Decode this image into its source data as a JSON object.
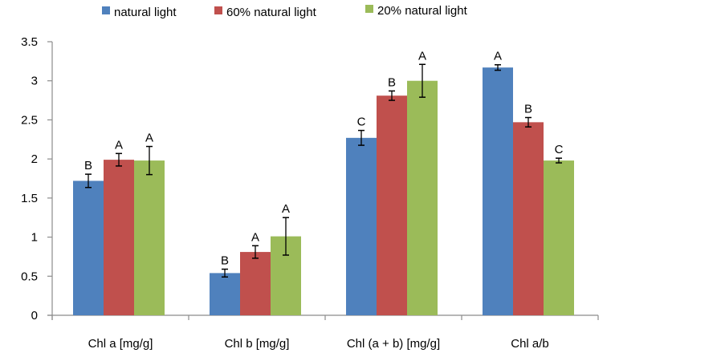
{
  "chart_data": {
    "type": "bar",
    "title": "",
    "xlabel": "",
    "ylabel": "",
    "ylim": [
      0,
      3.5
    ],
    "yticks": [
      "0",
      "0.5",
      "1",
      "1.5",
      "2",
      "2.5",
      "3",
      "3.5"
    ],
    "ytick_values": [
      0,
      0.5,
      1,
      1.5,
      2,
      2.5,
      3,
      3.5
    ],
    "grid": false,
    "legend_position": "top",
    "categories": [
      "Chl a [mg/g]",
      "Chl b [mg/g]",
      "Chl (a + b) [mg/g]",
      "Chl a/b"
    ],
    "series": [
      {
        "name": "natural light",
        "color": "#4F81BD",
        "values": [
          1.72,
          0.54,
          2.27,
          3.17
        ],
        "errors": [
          0.085,
          0.05,
          0.095,
          0.035
        ],
        "labels": [
          "B",
          "B",
          "C",
          "A"
        ]
      },
      {
        "name": "60% natural light",
        "color": "#C0504D",
        "values": [
          1.99,
          0.81,
          2.81,
          2.47
        ],
        "errors": [
          0.08,
          0.08,
          0.06,
          0.06
        ],
        "labels": [
          "A",
          "A",
          "B",
          "B"
        ]
      },
      {
        "name": "20% natural light",
        "color": "#9BBB59",
        "values": [
          1.98,
          1.01,
          3.0,
          1.98
        ],
        "errors": [
          0.18,
          0.24,
          0.21,
          0.03
        ],
        "labels": [
          "A",
          "A",
          "A",
          "C"
        ]
      }
    ]
  }
}
